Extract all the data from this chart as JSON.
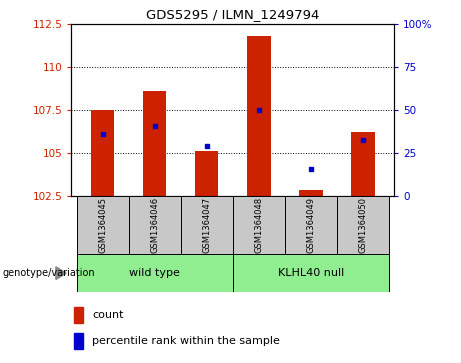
{
  "title": "GDS5295 / ILMN_1249794",
  "samples": [
    "GSM1364045",
    "GSM1364046",
    "GSM1364047",
    "GSM1364048",
    "GSM1364049",
    "GSM1364050"
  ],
  "bar_bottoms": [
    102.5,
    102.5,
    102.5,
    102.5,
    102.5,
    102.5
  ],
  "bar_tops": [
    107.5,
    108.6,
    105.1,
    111.8,
    102.85,
    106.2
  ],
  "percentile_values": [
    106.1,
    106.55,
    105.4,
    107.5,
    104.05,
    105.75
  ],
  "ylim_left": [
    102.5,
    112.5
  ],
  "ylim_right": [
    0,
    100
  ],
  "yticks_left": [
    102.5,
    105.0,
    107.5,
    110.0,
    112.5
  ],
  "ytick_labels_left": [
    "102.5",
    "105",
    "107.5",
    "110",
    "112.5"
  ],
  "yticks_right": [
    0,
    25,
    50,
    75,
    100
  ],
  "ytick_labels_right": [
    "0",
    "25",
    "50",
    "75",
    "100%"
  ],
  "bar_color": "#CC2200",
  "dot_color": "#0000CC",
  "group_data": [
    {
      "name": "wild type",
      "start": 0,
      "end": 2
    },
    {
      "name": "KLHL40 null",
      "start": 3,
      "end": 5
    }
  ],
  "group_color": "#90EE90",
  "gray_cell_color": "#C8C8C8",
  "genotype_label": "genotype/variation",
  "legend_count": "count",
  "legend_percentile": "percentile rank within the sample"
}
